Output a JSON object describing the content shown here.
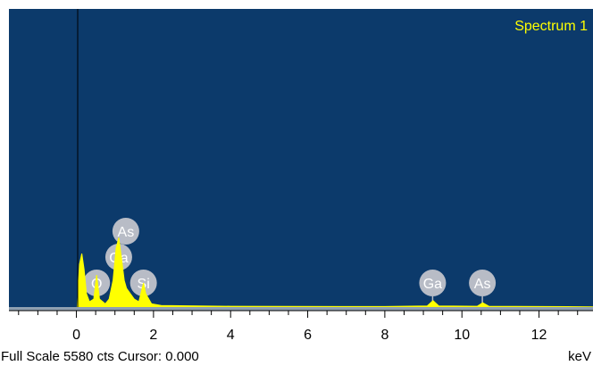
{
  "chart_data": {
    "type": "area",
    "title": "Spectrum 1",
    "xlabel": "keV",
    "ylabel": "",
    "xlim": [
      -1.75,
      13.4
    ],
    "ylim": [
      0,
      5580
    ],
    "x_ticks": [
      0,
      2,
      4,
      6,
      8,
      10,
      12
    ],
    "grid": false,
    "colors": {
      "background": "#0c3a6b",
      "trace": "#ffff00",
      "marker_circle": "#b8bcc6",
      "marker_text": "#ffffff",
      "title": "#ffff00"
    },
    "series": [
      {
        "values": [
          [
            0.02,
            0
          ],
          [
            0.08,
            800
          ],
          [
            0.14,
            1000
          ],
          [
            0.2,
            700
          ],
          [
            0.26,
            250
          ],
          [
            0.34,
            100
          ],
          [
            0.45,
            150
          ],
          [
            0.525,
            600
          ],
          [
            0.6,
            150
          ],
          [
            0.75,
            60
          ],
          [
            0.85,
            150
          ],
          [
            0.95,
            500
          ],
          [
            1.03,
            1100
          ],
          [
            1.1,
            1300
          ],
          [
            1.17,
            900
          ],
          [
            1.24,
            500
          ],
          [
            1.3,
            350
          ],
          [
            1.4,
            250
          ],
          [
            1.5,
            150
          ],
          [
            1.62,
            100
          ],
          [
            1.74,
            450
          ],
          [
            1.8,
            250
          ],
          [
            1.95,
            60
          ],
          [
            2.2,
            30
          ],
          [
            4,
            15
          ],
          [
            8,
            10
          ],
          [
            9.1,
            20
          ],
          [
            9.25,
            120
          ],
          [
            9.4,
            20
          ],
          [
            10.4,
            15
          ],
          [
            10.54,
            80
          ],
          [
            10.7,
            15
          ],
          [
            13.4,
            5
          ]
        ]
      }
    ],
    "markers": [
      {
        "label": "O",
        "energy": 0.525,
        "stack": 0
      },
      {
        "label": "Ga",
        "energy": 1.098,
        "stack": 1
      },
      {
        "label": "As",
        "energy": 1.282,
        "stack": 2
      },
      {
        "label": "Si",
        "energy": 1.74,
        "stack": 0
      },
      {
        "label": "Ga",
        "energy": 9.24,
        "stack": 0
      },
      {
        "label": "As",
        "energy": 10.53,
        "stack": 0
      }
    ]
  },
  "footer": {
    "scale_text": "Full Scale 5580 cts Cursor: 0.000",
    "unit_label": "keV"
  }
}
